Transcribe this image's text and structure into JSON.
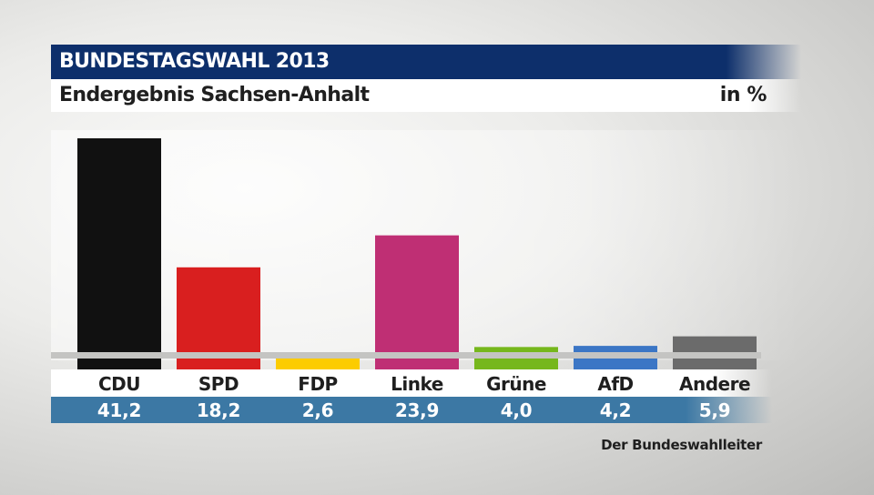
{
  "header": {
    "title": "BUNDESTAGSWAHL 2013",
    "subtitle": "Endergebnis Sachsen-Anhalt",
    "unit": "in %"
  },
  "source": "Der Bundeswahlleiter",
  "chart_data": {
    "type": "bar",
    "title": "Endergebnis Sachsen-Anhalt",
    "ylabel": "in %",
    "ylim": [
      0,
      41.2
    ],
    "categories": [
      "CDU",
      "SPD",
      "FDP",
      "Linke",
      "Grüne",
      "AfD",
      "Andere"
    ],
    "values": [
      41.2,
      18.2,
      2.6,
      23.9,
      4.0,
      4.2,
      5.9
    ],
    "value_labels": [
      "41,2",
      "18,2",
      "2,6",
      "23,9",
      "4,0",
      "4,2",
      "5,9"
    ],
    "colors": [
      "#111111",
      "#d91f1f",
      "#fccc00",
      "#bf2f74",
      "#76b71c",
      "#3b76c5",
      "#6b6b6b"
    ]
  }
}
